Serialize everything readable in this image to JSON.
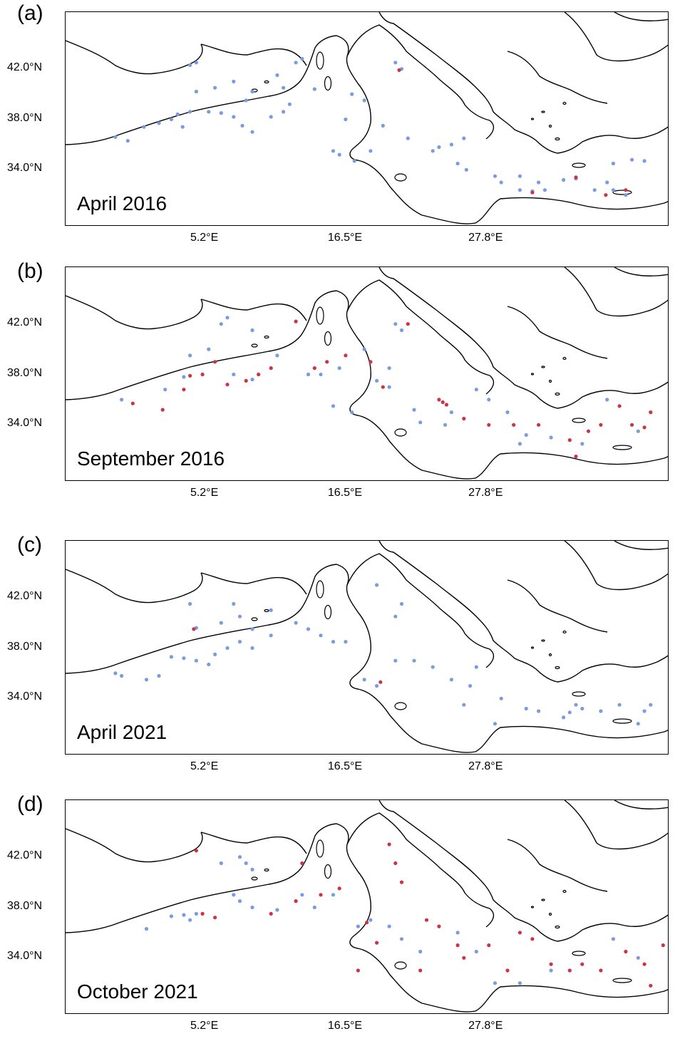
{
  "chart_data": {
    "type": "scatter",
    "x_ticks": [
      "5.2°E",
      "16.5°E",
      "27.8°E"
    ],
    "y_ticks": [
      "42.0°N",
      "38.0°N",
      "34.0°N"
    ],
    "colors": {
      "blue": "#7b9be0",
      "red": "#cc3344",
      "coast": "#000000"
    },
    "panels": [
      {
        "letter": "(a)",
        "title": "April 2016",
        "blue": [
          [
            -1,
            36.3
          ],
          [
            -2,
            36.6
          ],
          [
            0.3,
            37.4
          ],
          [
            1.5,
            37.7
          ],
          [
            2.5,
            38.0
          ],
          [
            3.4,
            37.4
          ],
          [
            3.0,
            38.4
          ],
          [
            4.0,
            38.6
          ],
          [
            5.5,
            38.6
          ],
          [
            6.5,
            38.5
          ],
          [
            7.5,
            38.2
          ],
          [
            8.2,
            37.5
          ],
          [
            9.0,
            37.0
          ],
          [
            8.5,
            39.5
          ],
          [
            9.0,
            40.2
          ],
          [
            6.0,
            40.5
          ],
          [
            4.5,
            40.2
          ],
          [
            4.0,
            42.3
          ],
          [
            4.5,
            42.5
          ],
          [
            7.5,
            41.0
          ],
          [
            11.0,
            41.5
          ],
          [
            11.5,
            40.5
          ],
          [
            12.5,
            42.5
          ],
          [
            13.0,
            42.8
          ],
          [
            14.0,
            40.4
          ],
          [
            12.0,
            39.2
          ],
          [
            11.5,
            38.6
          ],
          [
            10.5,
            38.2
          ],
          [
            16.5,
            38.0
          ],
          [
            17.0,
            40.0
          ],
          [
            18.0,
            39.5
          ],
          [
            20.5,
            42.5
          ],
          [
            21.0,
            42.0
          ],
          [
            19.5,
            37.5
          ],
          [
            21.5,
            36.5
          ],
          [
            23.5,
            35.5
          ],
          [
            25.0,
            36.0
          ],
          [
            24.0,
            35.8
          ],
          [
            26.0,
            36.5
          ],
          [
            25.5,
            34.5
          ],
          [
            26.2,
            34.0
          ],
          [
            28.5,
            33.5
          ],
          [
            29.0,
            33.0
          ],
          [
            30.5,
            32.4
          ],
          [
            31.5,
            32.3
          ],
          [
            32.5,
            32.4
          ],
          [
            34.0,
            33.2
          ],
          [
            35.0,
            33.3
          ],
          [
            36.5,
            32.4
          ],
          [
            38.0,
            32.4
          ],
          [
            39.0,
            32.0
          ],
          [
            37.5,
            33.0
          ],
          [
            38.0,
            34.5
          ],
          [
            39.5,
            34.8
          ],
          [
            40.5,
            34.7
          ],
          [
            18.5,
            35.5
          ],
          [
            16.0,
            35.2
          ],
          [
            17.2,
            34.7
          ],
          [
            15.5,
            35.5
          ],
          [
            30.5,
            33.5
          ],
          [
            32.0,
            33.0
          ]
        ],
        "red": [
          [
            20.8,
            41.9
          ],
          [
            35.0,
            33.4
          ],
          [
            31.5,
            32.2
          ],
          [
            37.4,
            32.0
          ],
          [
            39.0,
            32.4
          ]
        ]
      },
      {
        "letter": "(b)",
        "title": "September 2016",
        "blue": [
          [
            -1.5,
            36.0
          ],
          [
            2.0,
            36.8
          ],
          [
            3.5,
            37.8
          ],
          [
            4.0,
            39.5
          ],
          [
            5.5,
            40.0
          ],
          [
            6.5,
            42.0
          ],
          [
            7.0,
            42.5
          ],
          [
            9.0,
            41.5
          ],
          [
            9.0,
            37.6
          ],
          [
            7.5,
            38.0
          ],
          [
            11.0,
            39.5
          ],
          [
            13.5,
            38.0
          ],
          [
            14.5,
            38.0
          ],
          [
            16.0,
            38.5
          ],
          [
            18.0,
            40.0
          ],
          [
            20.5,
            42.0
          ],
          [
            21.0,
            41.5
          ],
          [
            20.0,
            38.5
          ],
          [
            19.0,
            37.5
          ],
          [
            20.0,
            37.0
          ],
          [
            22.0,
            35.2
          ],
          [
            22.5,
            34.2
          ],
          [
            24.5,
            34.0
          ],
          [
            15.5,
            35.5
          ],
          [
            17.0,
            35.0
          ],
          [
            25.0,
            35.0
          ],
          [
            27.0,
            36.8
          ],
          [
            28.0,
            36.0
          ],
          [
            29.5,
            35.0
          ],
          [
            31.0,
            33.2
          ],
          [
            30.5,
            32.5
          ],
          [
            33.0,
            33.0
          ],
          [
            35.5,
            32.5
          ],
          [
            37.5,
            36.0
          ],
          [
            40.0,
            33.5
          ]
        ],
        "red": [
          [
            -0.6,
            35.7
          ],
          [
            1.8,
            35.2
          ],
          [
            3.5,
            36.8
          ],
          [
            4.0,
            37.9
          ],
          [
            5.0,
            38.0
          ],
          [
            6.0,
            39.0
          ],
          [
            7.0,
            37.2
          ],
          [
            8.5,
            37.5
          ],
          [
            9.5,
            38.0
          ],
          [
            10.5,
            38.5
          ],
          [
            12.5,
            42.2
          ],
          [
            14.0,
            38.5
          ],
          [
            15.0,
            39.0
          ],
          [
            16.5,
            39.5
          ],
          [
            18.5,
            39.0
          ],
          [
            19.5,
            37.0
          ],
          [
            21.5,
            42.0
          ],
          [
            24.0,
            36.0
          ],
          [
            24.3,
            35.8
          ],
          [
            24.6,
            35.6
          ],
          [
            26.0,
            34.5
          ],
          [
            28.0,
            34.0
          ],
          [
            30.0,
            34.0
          ],
          [
            32.0,
            34.0
          ],
          [
            34.5,
            32.8
          ],
          [
            35.0,
            31.5
          ],
          [
            36.0,
            33.5
          ],
          [
            38.5,
            35.5
          ],
          [
            39.5,
            34.0
          ],
          [
            40.5,
            33.8
          ],
          [
            41.0,
            35.0
          ],
          [
            37.0,
            34.0
          ]
        ]
      },
      {
        "letter": "(c)",
        "title": "April 2021",
        "blue": [
          [
            -2,
            36.0
          ],
          [
            -1.5,
            35.8
          ],
          [
            0.5,
            35.5
          ],
          [
            1.5,
            35.8
          ],
          [
            2.5,
            37.3
          ],
          [
            3.5,
            37.2
          ],
          [
            4.5,
            37.0
          ],
          [
            5.5,
            36.7
          ],
          [
            6.0,
            37.5
          ],
          [
            7.0,
            38.0
          ],
          [
            8.0,
            38.5
          ],
          [
            9.0,
            38.0
          ],
          [
            6.5,
            40.0
          ],
          [
            7.5,
            41.5
          ],
          [
            8.0,
            40.5
          ],
          [
            9.0,
            39.5
          ],
          [
            4.5,
            39.6
          ],
          [
            4.0,
            41.5
          ],
          [
            10.5,
            41.0
          ],
          [
            10.5,
            39.0
          ],
          [
            12.5,
            40.0
          ],
          [
            13.5,
            39.5
          ],
          [
            14.5,
            39.0
          ],
          [
            15.5,
            38.5
          ],
          [
            16.5,
            38.5
          ],
          [
            20.5,
            40.5
          ],
          [
            21.0,
            41.5
          ],
          [
            19.0,
            43.0
          ],
          [
            20.5,
            37.0
          ],
          [
            22.0,
            37.0
          ],
          [
            23.5,
            36.5
          ],
          [
            25.0,
            35.5
          ],
          [
            26.5,
            35.0
          ],
          [
            27.0,
            36.5
          ],
          [
            29.0,
            34.0
          ],
          [
            26.0,
            33.5
          ],
          [
            28.5,
            32.0
          ],
          [
            31.0,
            33.2
          ],
          [
            32.0,
            33.0
          ],
          [
            34.0,
            32.5
          ],
          [
            35.0,
            33.5
          ],
          [
            34.5,
            32.9
          ],
          [
            35.5,
            33.2
          ],
          [
            37.0,
            33.0
          ],
          [
            38.5,
            33.5
          ],
          [
            40.5,
            33.0
          ],
          [
            41.0,
            33.5
          ],
          [
            40.0,
            32.0
          ],
          [
            19.0,
            35.0
          ],
          [
            18.0,
            35.5
          ]
        ],
        "red": [
          [
            4.3,
            39.5
          ],
          [
            19.3,
            35.3
          ]
        ]
      },
      {
        "letter": "(d)",
        "title": "October 2021",
        "blue": [
          [
            0.5,
            36.3
          ],
          [
            2.5,
            37.3
          ],
          [
            3.5,
            37.4
          ],
          [
            4.0,
            37.0
          ],
          [
            4.5,
            37.5
          ],
          [
            6.5,
            41.5
          ],
          [
            8.0,
            42.0
          ],
          [
            8.5,
            41.5
          ],
          [
            9.0,
            41.0
          ],
          [
            7.5,
            39.0
          ],
          [
            8.0,
            38.5
          ],
          [
            9.0,
            38.0
          ],
          [
            11.0,
            37.8
          ],
          [
            13.0,
            39.0
          ],
          [
            14.0,
            38.0
          ],
          [
            15.5,
            39.0
          ],
          [
            17.5,
            36.5
          ],
          [
            18.5,
            37.0
          ],
          [
            20.0,
            36.5
          ],
          [
            21.0,
            35.5
          ],
          [
            22.5,
            34.5
          ],
          [
            25.5,
            36.0
          ],
          [
            27.0,
            34.5
          ],
          [
            28.5,
            32.0
          ],
          [
            30.5,
            32.0
          ],
          [
            33.0,
            33.0
          ],
          [
            38.0,
            35.5
          ],
          [
            40.0,
            34.0
          ]
        ],
        "red": [
          [
            4.5,
            42.5
          ],
          [
            5.0,
            37.5
          ],
          [
            6.0,
            37.2
          ],
          [
            10.5,
            37.5
          ],
          [
            12.5,
            38.5
          ],
          [
            13.0,
            41.5
          ],
          [
            14.5,
            39.0
          ],
          [
            16.0,
            39.5
          ],
          [
            18.2,
            36.8
          ],
          [
            19.0,
            35.2
          ],
          [
            20.5,
            41.5
          ],
          [
            20.0,
            43.0
          ],
          [
            21.0,
            40.0
          ],
          [
            23.0,
            37.0
          ],
          [
            24.0,
            36.5
          ],
          [
            25.5,
            35.0
          ],
          [
            26.0,
            34.0
          ],
          [
            28.0,
            35.0
          ],
          [
            29.5,
            33.0
          ],
          [
            30.5,
            36.0
          ],
          [
            31.5,
            35.5
          ],
          [
            33.0,
            33.5
          ],
          [
            34.5,
            33.0
          ],
          [
            35.5,
            33.5
          ],
          [
            37.0,
            33.0
          ],
          [
            39.0,
            34.5
          ],
          [
            40.5,
            33.5
          ],
          [
            41.0,
            31.8
          ],
          [
            42.0,
            35.0
          ],
          [
            17.5,
            33.0
          ],
          [
            22.5,
            33.0
          ]
        ]
      }
    ]
  }
}
